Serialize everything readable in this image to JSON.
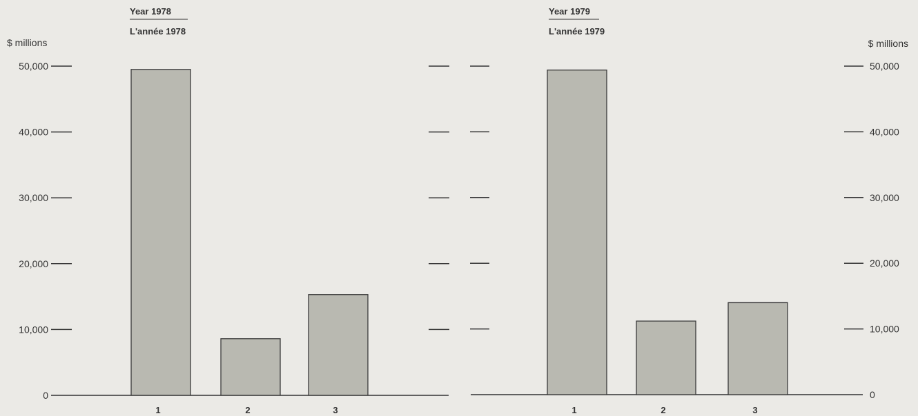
{
  "chart_data": [
    {
      "type": "bar",
      "title": "Year 1978",
      "subtitle": "L'année 1978",
      "ylabel": "$ millions",
      "ylim": [
        0,
        50000
      ],
      "yticks": [
        "0",
        "10,000",
        "20,000",
        "30,000",
        "40,000",
        "50,000"
      ],
      "categories": [
        "1",
        "2",
        "3"
      ],
      "values": [
        49500,
        8600,
        15300
      ],
      "axis_side": "left",
      "grid": false
    },
    {
      "type": "bar",
      "title": "Year 1979",
      "subtitle": "L'année 1979",
      "ylabel": "$ millions",
      "ylim": [
        0,
        50000
      ],
      "yticks": [
        "0",
        "10,000",
        "20,000",
        "30,000",
        "40,000",
        "50,000"
      ],
      "categories": [
        "1",
        "2",
        "3"
      ],
      "values": [
        49400,
        11200,
        14000
      ],
      "axis_side": "right",
      "grid": false
    }
  ],
  "colors": {
    "bar_fill": "#b9b9b1",
    "bar_stroke": "#3a3a3a",
    "ink": "#333333"
  }
}
